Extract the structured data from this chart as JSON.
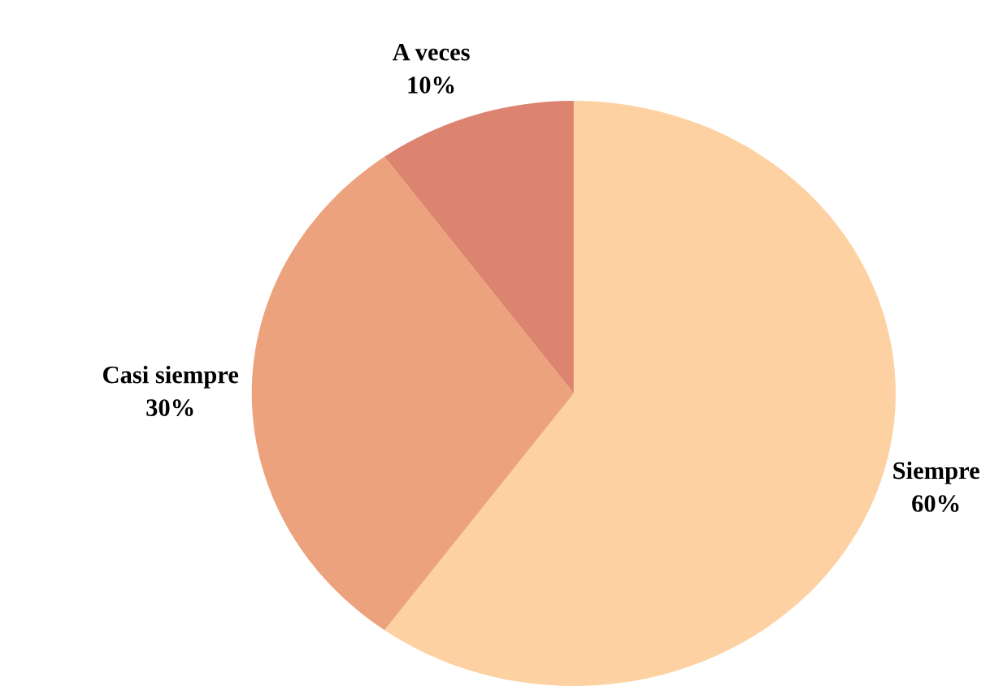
{
  "chart_data": {
    "type": "pie",
    "categories": [
      "Siempre",
      "Casi siempre",
      "A veces"
    ],
    "values": [
      60,
      30,
      10
    ],
    "value_labels": [
      "60%",
      "30%",
      "10%"
    ],
    "colors": [
      "#fdd1a1",
      "#eca37d",
      "#dc8470"
    ]
  }
}
